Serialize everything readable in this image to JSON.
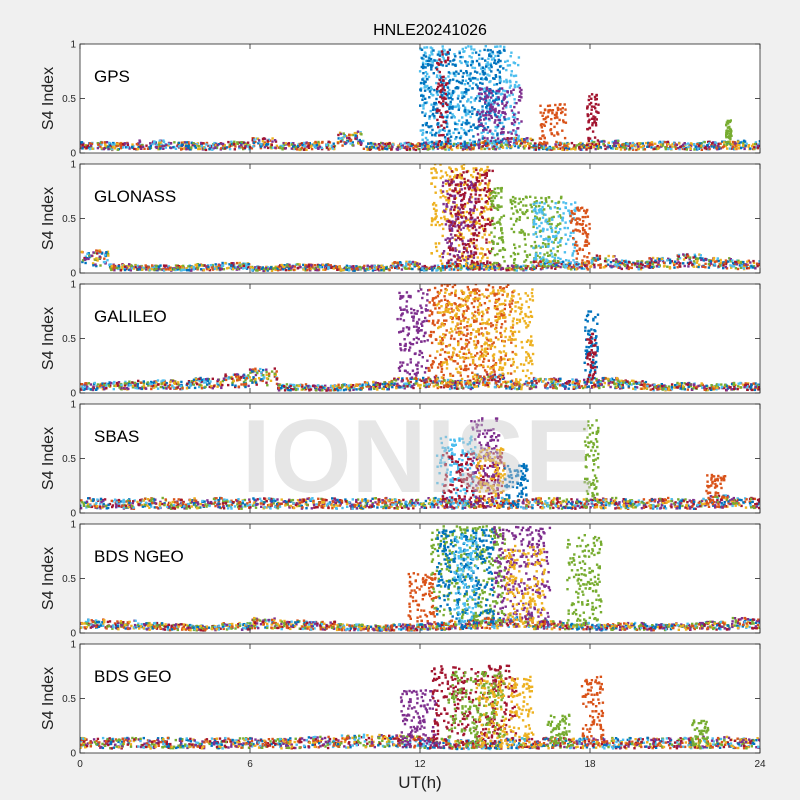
{
  "title": "HNLE20241026",
  "watermark": "IONISE",
  "xlabel": "UT(h)",
  "ylabel": "S4 Index",
  "xlim": [
    0,
    24
  ],
  "ylim": [
    0,
    1
  ],
  "xticks": [
    "0",
    "6",
    "12",
    "18",
    "24"
  ],
  "yticks": [
    "0",
    "0.5",
    "1"
  ],
  "colors": {
    "background": "#f0f0f0",
    "axes": "#ffffff",
    "series": [
      "#0072BD",
      "#D95319",
      "#EDB120",
      "#7E2F8E",
      "#77AC30",
      "#4DBEEE",
      "#A2142F"
    ],
    "watermark": "#c8c8c8"
  },
  "chart_data": [
    {
      "type": "scatter",
      "label": "GPS",
      "xlim": [
        0,
        24
      ],
      "ylim": [
        0,
        1
      ],
      "baseline": [
        0.09,
        0.08,
        0.1,
        0.09,
        0.08,
        0.09,
        0.12,
        0.08,
        0.09,
        0.17,
        0.08,
        0.08,
        0.09,
        0.08,
        0.1,
        0.12,
        0.08,
        0.08,
        0.1,
        0.08,
        0.09,
        0.08,
        0.09,
        0.1,
        0.09
      ],
      "activity": [
        {
          "x": [
            12.0,
            15.5
          ],
          "ymax": 0.98,
          "color_index": 5
        },
        {
          "x": [
            12.0,
            15.0
          ],
          "ymax": 0.95,
          "color_index": 0
        },
        {
          "x": [
            12.6,
            13.0
          ],
          "ymax": 0.95,
          "color_index": 6
        },
        {
          "x": [
            14.0,
            15.6
          ],
          "ymax": 0.6,
          "color_index": 3
        },
        {
          "x": [
            16.2,
            17.2
          ],
          "ymax": 0.45,
          "color_index": 1
        },
        {
          "x": [
            17.9,
            18.3
          ],
          "ymax": 0.55,
          "color_index": 6
        },
        {
          "x": [
            22.8,
            23.0
          ],
          "ymax": 0.3,
          "color_index": 4
        }
      ]
    },
    {
      "type": "scatter",
      "label": "GLONASS",
      "xlim": [
        0,
        24
      ],
      "ylim": [
        0,
        1
      ],
      "baseline": [
        0.18,
        0.07,
        0.06,
        0.06,
        0.07,
        0.08,
        0.05,
        0.07,
        0.07,
        0.06,
        0.06,
        0.09,
        0.06,
        0.08,
        0.08,
        0.06,
        0.1,
        0.09,
        0.14,
        0.1,
        0.12,
        0.15,
        0.12,
        0.1,
        0.06
      ],
      "activity": [
        {
          "x": [
            12.4,
            14.5
          ],
          "ymax": 1.0,
          "color_index": 2
        },
        {
          "x": [
            12.8,
            14.0
          ],
          "ymax": 0.85,
          "color_index": 3
        },
        {
          "x": [
            13.0,
            14.6
          ],
          "ymax": 0.95,
          "color_index": 6
        },
        {
          "x": [
            14.5,
            15.0
          ],
          "ymax": 0.8,
          "color_index": 4
        },
        {
          "x": [
            15.2,
            17.0
          ],
          "ymax": 0.7,
          "color_index": 4
        },
        {
          "x": [
            16.0,
            17.5
          ],
          "ymax": 0.65,
          "color_index": 5
        },
        {
          "x": [
            17.3,
            18.0
          ],
          "ymax": 0.6,
          "color_index": 1
        }
      ]
    },
    {
      "type": "scatter",
      "label": "GALILEO",
      "xlim": [
        0,
        24
      ],
      "ylim": [
        0,
        1
      ],
      "baseline": [
        0.08,
        0.09,
        0.1,
        0.1,
        0.12,
        0.15,
        0.2,
        0.07,
        0.06,
        0.07,
        0.09,
        0.12,
        0.13,
        0.1,
        0.15,
        0.1,
        0.12,
        0.11,
        0.12,
        0.1,
        0.07,
        0.08,
        0.07,
        0.08,
        0.09
      ],
      "activity": [
        {
          "x": [
            11.2,
            12.3
          ],
          "ymax": 0.95,
          "color_index": 3
        },
        {
          "x": [
            12.3,
            15.3
          ],
          "ymax": 1.0,
          "color_index": 1
        },
        {
          "x": [
            12.6,
            16.0
          ],
          "ymax": 0.95,
          "color_index": 2
        },
        {
          "x": [
            17.8,
            18.3
          ],
          "ymax": 0.75,
          "color_index": 0
        },
        {
          "x": [
            17.9,
            18.2
          ],
          "ymax": 0.55,
          "color_index": 6
        }
      ]
    },
    {
      "type": "scatter",
      "label": "SBAS",
      "xlim": [
        0,
        24
      ],
      "ylim": [
        0,
        1
      ],
      "baseline": [
        0.12,
        0.11,
        0.12,
        0.11,
        0.12,
        0.11,
        0.12,
        0.11,
        0.12,
        0.11,
        0.12,
        0.11,
        0.12,
        0.11,
        0.12,
        0.11,
        0.12,
        0.11,
        0.12,
        0.11,
        0.12,
        0.11,
        0.14,
        0.12,
        0.12
      ],
      "activity": [
        {
          "x": [
            12.6,
            14.0
          ],
          "ymax": 0.7,
          "color_index": 5
        },
        {
          "x": [
            12.8,
            15.0
          ],
          "ymax": 0.55,
          "color_index": 6
        },
        {
          "x": [
            13.8,
            14.8
          ],
          "ymax": 0.88,
          "color_index": 3
        },
        {
          "x": [
            14.0,
            15.0
          ],
          "ymax": 0.6,
          "color_index": 2
        },
        {
          "x": [
            15.0,
            15.8
          ],
          "ymax": 0.45,
          "color_index": 0
        },
        {
          "x": [
            17.8,
            18.3
          ],
          "ymax": 0.85,
          "color_index": 4
        },
        {
          "x": [
            22.1,
            22.8
          ],
          "ymax": 0.35,
          "color_index": 1
        }
      ]
    },
    {
      "type": "scatter",
      "label": "BDS NGEO",
      "xlim": [
        0,
        24
      ],
      "ylim": [
        0,
        1
      ],
      "baseline": [
        0.11,
        0.1,
        0.08,
        0.07,
        0.06,
        0.08,
        0.12,
        0.1,
        0.09,
        0.07,
        0.06,
        0.07,
        0.08,
        0.1,
        0.12,
        0.15,
        0.1,
        0.08,
        0.07,
        0.08,
        0.07,
        0.08,
        0.09,
        0.12,
        0.14
      ],
      "activity": [
        {
          "x": [
            11.6,
            12.6
          ],
          "ymax": 0.55,
          "color_index": 1
        },
        {
          "x": [
            12.4,
            15.0
          ],
          "ymax": 0.98,
          "color_index": 4
        },
        {
          "x": [
            12.6,
            14.6
          ],
          "ymax": 0.95,
          "color_index": 0
        },
        {
          "x": [
            13.2,
            14.0
          ],
          "ymax": 0.9,
          "color_index": 5
        },
        {
          "x": [
            14.6,
            16.6
          ],
          "ymax": 0.98,
          "color_index": 3
        },
        {
          "x": [
            15.0,
            16.4
          ],
          "ymax": 0.8,
          "color_index": 2
        },
        {
          "x": [
            17.2,
            18.4
          ],
          "ymax": 0.9,
          "color_index": 4
        }
      ]
    },
    {
      "type": "scatter",
      "label": "BDS GEO",
      "xlim": [
        0,
        24
      ],
      "ylim": [
        0,
        1
      ],
      "baseline": [
        0.12,
        0.12,
        0.12,
        0.12,
        0.12,
        0.12,
        0.12,
        0.12,
        0.13,
        0.14,
        0.15,
        0.14,
        0.12,
        0.1,
        0.1,
        0.12,
        0.12,
        0.12,
        0.12,
        0.12,
        0.12,
        0.12,
        0.13,
        0.12,
        0.12
      ],
      "activity": [
        {
          "x": [
            11.3,
            12.6
          ],
          "ymax": 0.6,
          "color_index": 3
        },
        {
          "x": [
            12.4,
            15.4
          ],
          "ymax": 0.8,
          "color_index": 6
        },
        {
          "x": [
            13.0,
            15.0
          ],
          "ymax": 0.75,
          "color_index": 4
        },
        {
          "x": [
            14.0,
            16.0
          ],
          "ymax": 0.7,
          "color_index": 2
        },
        {
          "x": [
            16.5,
            17.4
          ],
          "ymax": 0.35,
          "color_index": 4
        },
        {
          "x": [
            17.7,
            18.5
          ],
          "ymax": 0.7,
          "color_index": 1
        },
        {
          "x": [
            21.6,
            22.2
          ],
          "ymax": 0.3,
          "color_index": 4
        }
      ]
    }
  ]
}
